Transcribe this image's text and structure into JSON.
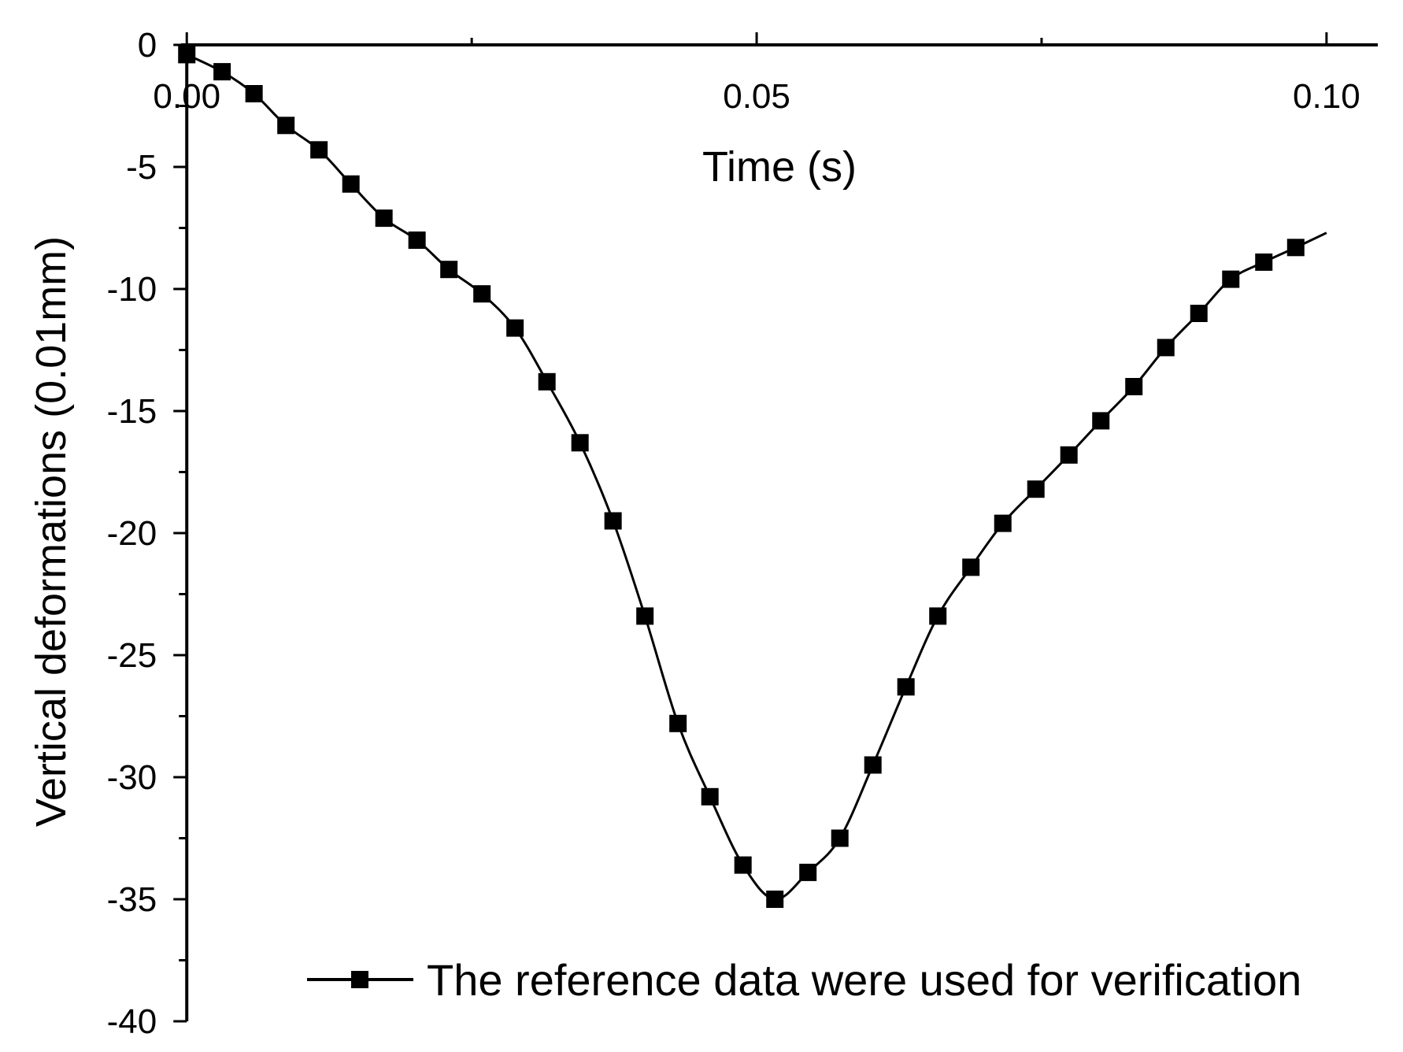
{
  "chart_data": {
    "type": "line",
    "title": "",
    "xlabel": "Time (s)",
    "ylabel": "Vertical deformations (0.01mm)",
    "xlim": [
      -0.0005,
      0.1045
    ],
    "ylim": [
      -40,
      0
    ],
    "x_ticks": [
      {
        "value": 0.0,
        "label": "0.00"
      },
      {
        "value": 0.05,
        "label": "0.05"
      },
      {
        "value": 0.1,
        "label": "0.10"
      }
    ],
    "x_minor_ticks": [
      0.025,
      0.075
    ],
    "y_ticks": [
      {
        "value": 0,
        "label": "0"
      },
      {
        "value": -5,
        "label": "-5"
      },
      {
        "value": -10,
        "label": "-10"
      },
      {
        "value": -15,
        "label": "-15"
      },
      {
        "value": -20,
        "label": "-20"
      },
      {
        "value": -25,
        "label": "-25"
      },
      {
        "value": -30,
        "label": "-30"
      },
      {
        "value": -35,
        "label": "-35"
      },
      {
        "value": -40,
        "label": "-40"
      }
    ],
    "y_minor_ticks": [
      -2.5,
      -7.5,
      -12.5,
      -17.5,
      -22.5,
      -27.5,
      -32.5,
      -37.5
    ],
    "x_axis_position": "top",
    "grid": false,
    "legend_position": "bottom-right",
    "series": [
      {
        "name": "The reference data were used for verification",
        "color": "#000000",
        "marker": "square",
        "x": [
          0.0,
          0.0031,
          0.0059,
          0.0087,
          0.0116,
          0.0144,
          0.0173,
          0.0202,
          0.023,
          0.0259,
          0.0288,
          0.0316,
          0.0345,
          0.0374,
          0.0402,
          0.0431,
          0.0459,
          0.0488,
          0.0516,
          0.0545,
          0.0573,
          0.0602,
          0.0631,
          0.0659,
          0.0688,
          0.0716,
          0.0745,
          0.0774,
          0.0802,
          0.0831,
          0.0859,
          0.0888,
          0.0916,
          0.0945,
          0.0973
        ],
        "y": [
          -0.4,
          -1.1,
          -2.0,
          -3.3,
          -4.3,
          -5.7,
          -7.1,
          -8.0,
          -9.2,
          -10.2,
          -11.6,
          -13.8,
          -16.3,
          -19.5,
          -23.4,
          -27.8,
          -30.8,
          -33.6,
          -35.0,
          -33.9,
          -32.5,
          -29.5,
          -26.3,
          -23.4,
          -21.4,
          -19.6,
          -18.2,
          -16.8,
          -15.4,
          -14.0,
          -12.4,
          -11.0,
          -9.6,
          -8.9,
          -8.3
        ],
        "line_end": {
          "x": 0.1,
          "y": -7.7
        }
      }
    ]
  }
}
